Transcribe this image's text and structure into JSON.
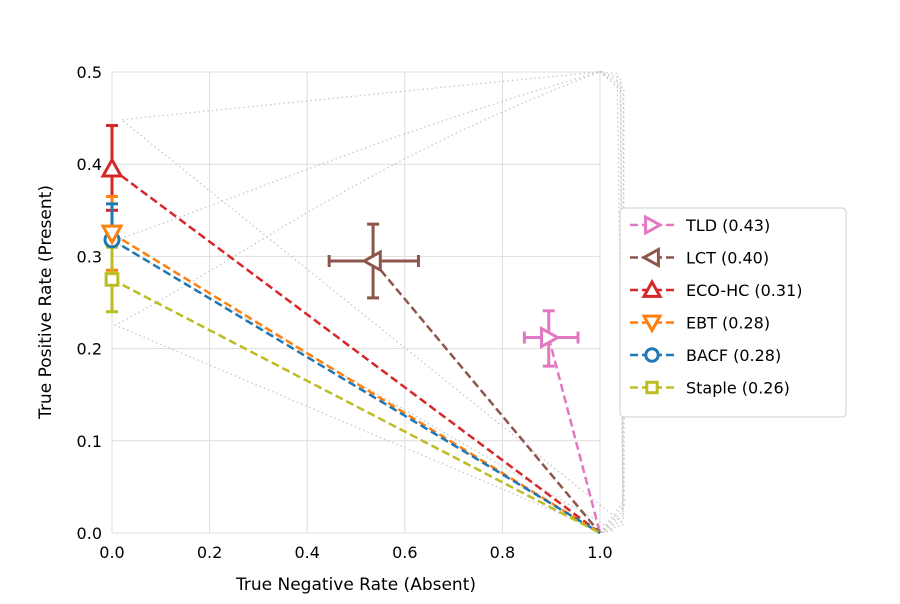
{
  "chart_data": {
    "type": "scatter",
    "title": "",
    "xlabel": "True Negative Rate (Absent)",
    "ylabel": "True Positive Rate (Present)",
    "xlim": [
      0.0,
      1.0
    ],
    "ylim": [
      0.0,
      0.5
    ],
    "x_ticks": [
      "0.0",
      "0.2",
      "0.4",
      "0.6",
      "0.8",
      "1.0"
    ],
    "y_ticks": [
      "0.0",
      "0.1",
      "0.2",
      "0.3",
      "0.4",
      "0.5"
    ],
    "grid": true,
    "iso_contours": true,
    "legend_position": "center-right, outside plot",
    "series": [
      {
        "name": "TLD (0.43)",
        "color": "#e377c2",
        "marker": "triangle-right",
        "x": 0.895,
        "y": 0.212,
        "xerr": [
          0.845,
          0.955
        ],
        "yerr": [
          0.181,
          0.241
        ],
        "line_to": [
          1.0,
          0.0
        ]
      },
      {
        "name": "LCT (0.40)",
        "color": "#8c564b",
        "marker": "triangle-left",
        "x": 0.535,
        "y": 0.295,
        "xerr": [
          0.445,
          0.628
        ],
        "yerr": [
          0.255,
          0.335
        ],
        "line_to": [
          1.0,
          0.0
        ]
      },
      {
        "name": "ECO-HC (0.31)",
        "color": "#d62728",
        "marker": "triangle-up",
        "x": 0.0,
        "y": 0.395,
        "xerr": null,
        "yerr": [
          0.35,
          0.442
        ],
        "line_to": [
          1.0,
          0.0
        ]
      },
      {
        "name": "EBT (0.28)",
        "color": "#ff7f0e",
        "marker": "triangle-down",
        "x": 0.0,
        "y": 0.325,
        "xerr": null,
        "yerr": [
          0.285,
          0.365
        ],
        "line_to": [
          1.0,
          0.0
        ]
      },
      {
        "name": "BACF (0.28)",
        "color": "#1f77b4",
        "marker": "circle",
        "x": 0.0,
        "y": 0.318,
        "xerr": null,
        "yerr": [
          0.28,
          0.357
        ],
        "line_to": [
          1.0,
          0.0
        ]
      },
      {
        "name": "Staple (0.26)",
        "color": "#bcbd22",
        "marker": "square",
        "x": 0.0,
        "y": 0.275,
        "xerr": null,
        "yerr": [
          0.24,
          0.31
        ],
        "line_to": [
          1.0,
          0.0
        ]
      }
    ]
  }
}
